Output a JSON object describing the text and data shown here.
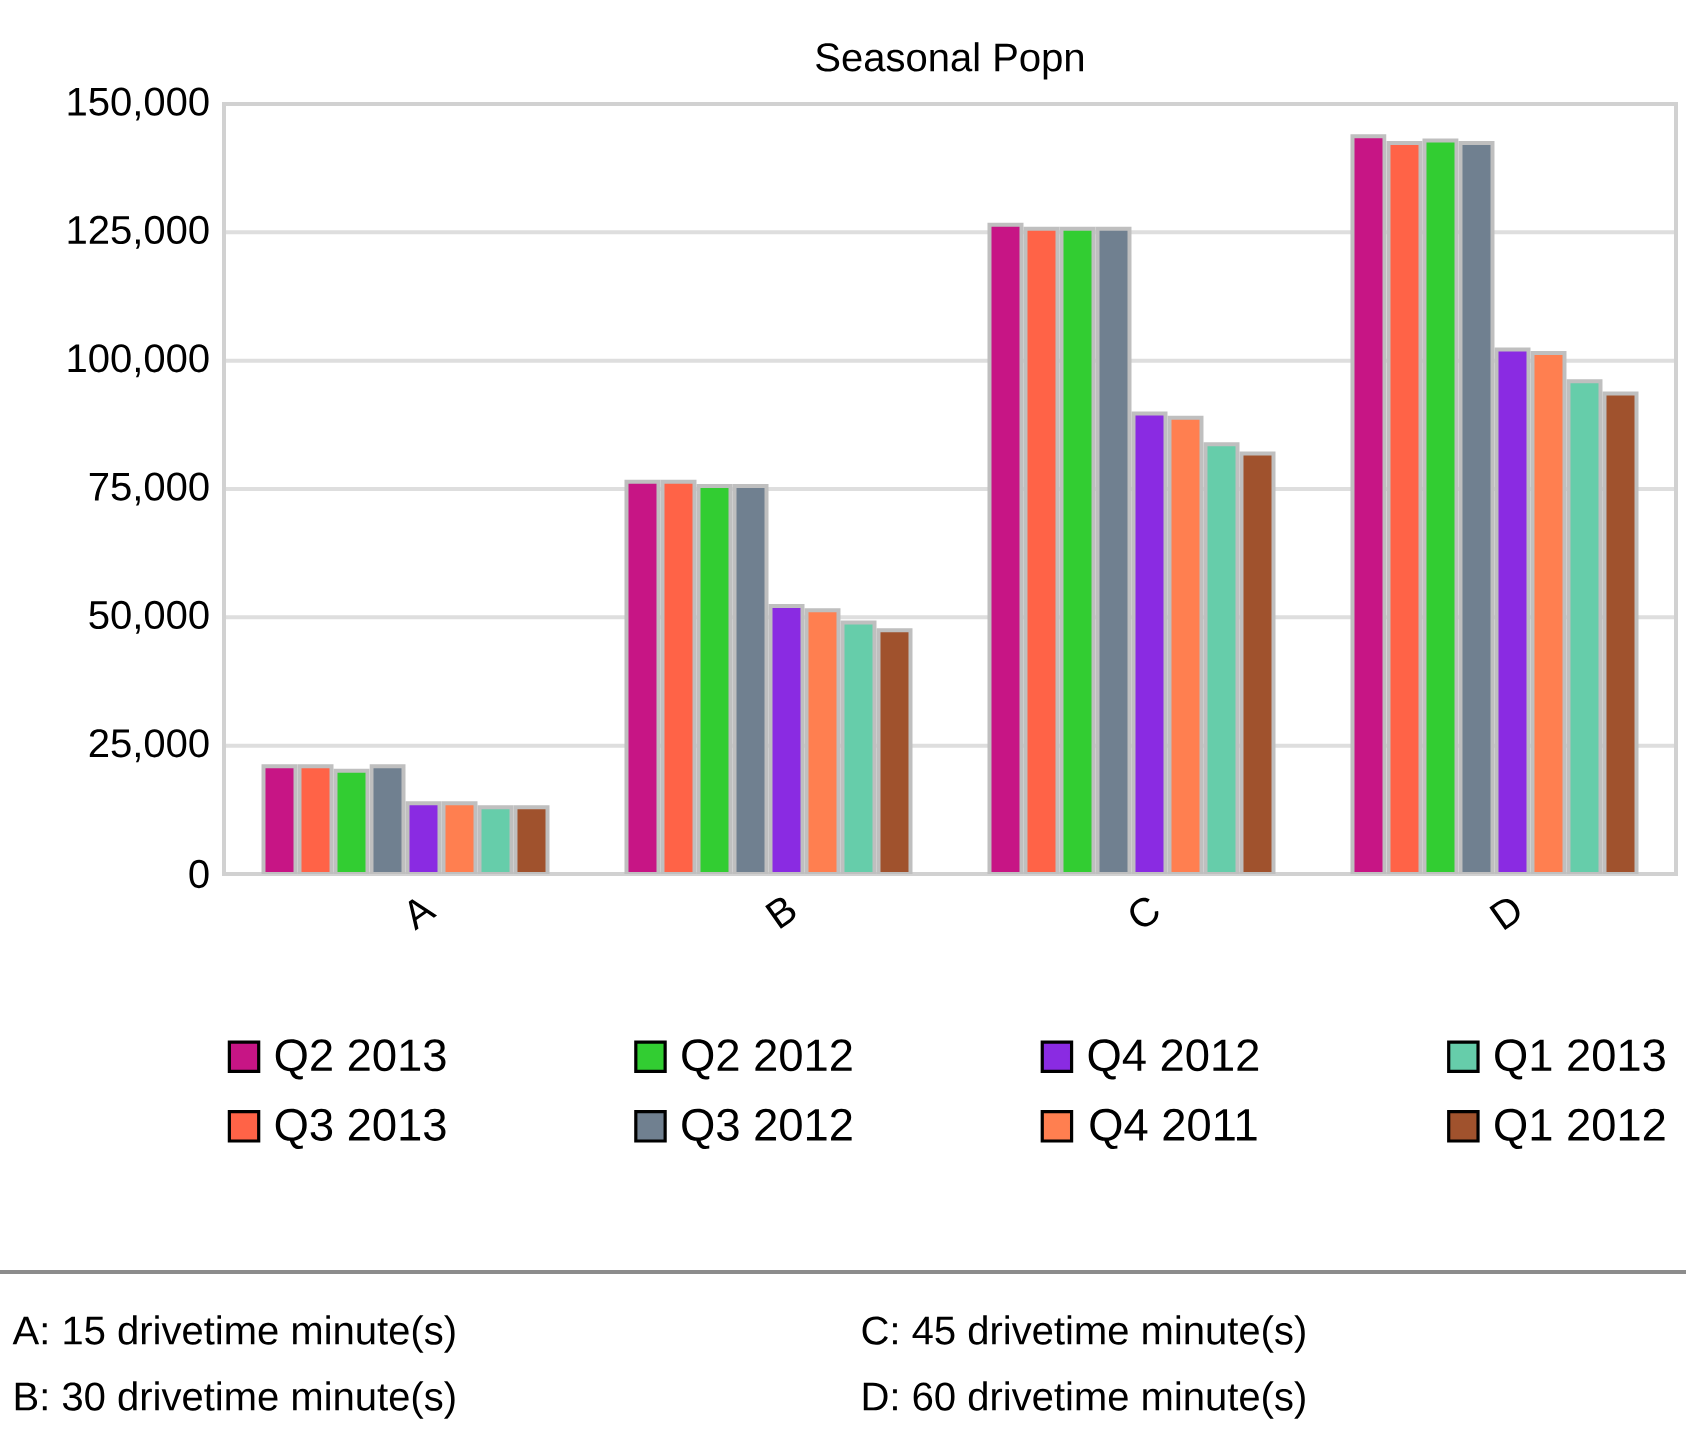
{
  "chart_data": {
    "type": "bar",
    "title": "Seasonal Popn",
    "categories": [
      "A",
      "B",
      "C",
      "D"
    ],
    "series": [
      {
        "name": "Q2 2013",
        "color": "#c71585",
        "values": [
          21000,
          76400,
          126500,
          143700
        ]
      },
      {
        "name": "Q3 2013",
        "color": "#ff6347",
        "values": [
          21000,
          76400,
          125700,
          142400
        ]
      },
      {
        "name": "Q2 2012",
        "color": "#32cd32",
        "values": [
          20100,
          75600,
          125700,
          142900
        ]
      },
      {
        "name": "Q3 2012",
        "color": "#708090",
        "values": [
          21000,
          75600,
          125700,
          142400
        ]
      },
      {
        "name": "Q4 2012",
        "color": "#8a2be2",
        "values": [
          13800,
          52200,
          89700,
          102200
        ]
      },
      {
        "name": "Q4 2011",
        "color": "#ff7f50",
        "values": [
          13800,
          51400,
          88900,
          101500
        ]
      },
      {
        "name": "Q1 2013",
        "color": "#66cdaa",
        "values": [
          13000,
          49000,
          83700,
          96000
        ]
      },
      {
        "name": "Q1 2012",
        "color": "#a0522d",
        "values": [
          13000,
          47500,
          81900,
          93600
        ]
      }
    ],
    "ylim": [
      0,
      150000
    ],
    "yticks": [
      {
        "value": 0,
        "label": "0"
      },
      {
        "value": 25000,
        "label": "25,000"
      },
      {
        "value": 50000,
        "label": "50,000"
      },
      {
        "value": 75000,
        "label": "75,000"
      },
      {
        "value": 100000,
        "label": "100,000"
      },
      {
        "value": 125000,
        "label": "125,000"
      },
      {
        "value": 150000,
        "label": "150,000"
      }
    ],
    "grid": "y",
    "legend": "bottom",
    "annotations": [
      "A: 15 drivetime minute(s)",
      "B: 30 drivetime minute(s)",
      "C: 45 drivetime minute(s)",
      "D: 60 drivetime minute(s)"
    ]
  }
}
